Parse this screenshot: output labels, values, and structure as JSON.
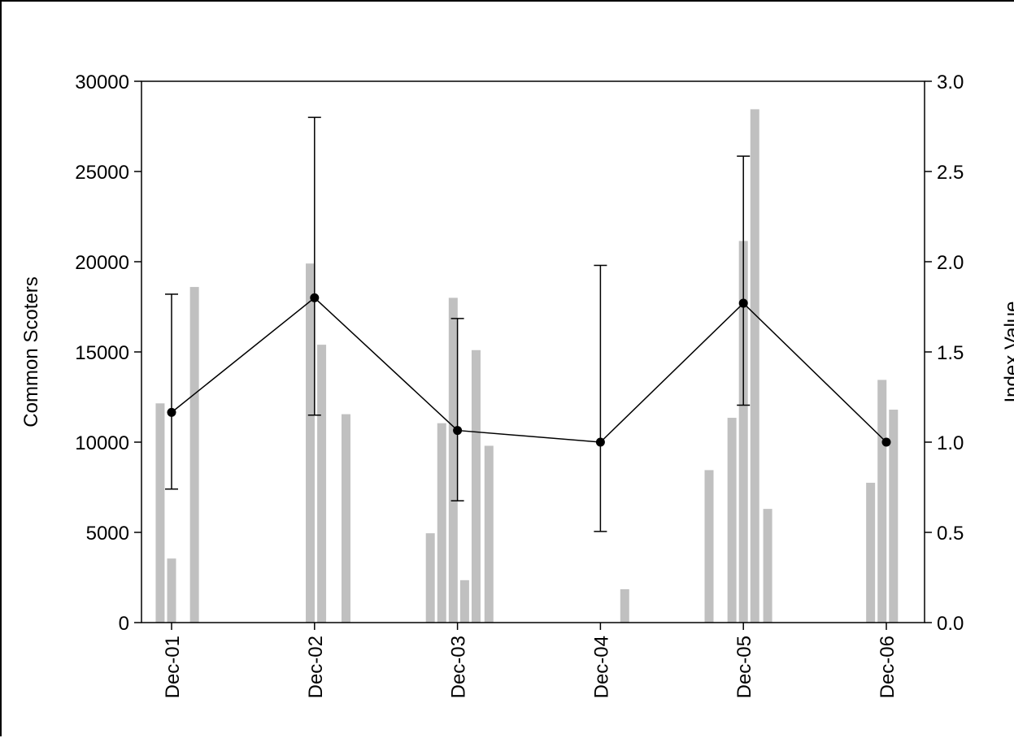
{
  "chart_data": {
    "type": "bar",
    "title": "",
    "x_tick_labels": [
      "Dec-01",
      "Dec-02",
      "Dec-03",
      "Dec-04",
      "Dec-05",
      "Dec-06"
    ],
    "ylabel": "Common Scoters",
    "ylabel_right": "Index Value",
    "ylim": [
      0,
      30000
    ],
    "ylim_right": [
      0,
      3.0
    ],
    "yticks": [
      "0",
      "5000",
      "10000",
      "15000",
      "20000",
      "25000",
      "30000"
    ],
    "yticks_right": [
      "0.0",
      "0.5",
      "1.0",
      "1.5",
      "2.0",
      "2.5",
      "3.0"
    ],
    "grid": false,
    "series": [
      {
        "kind": "bars",
        "axis": "left",
        "color": "#c0c0c0",
        "x": [
          -0.08,
          0.0,
          0.16,
          0.97,
          1.05,
          1.22,
          1.81,
          1.89,
          1.97,
          2.05,
          2.13,
          2.22,
          3.17,
          3.76,
          3.92,
          4.0,
          4.08,
          4.17,
          4.89,
          4.97,
          5.05,
          5.14
        ],
        "values": [
          12150,
          3550,
          18600,
          19900,
          15400,
          11550,
          4950,
          11050,
          18000,
          2350,
          15100,
          9800,
          1850,
          8450,
          11350,
          21150,
          28450,
          6300,
          7750,
          13450,
          11800,
          0
        ]
      },
      {
        "kind": "line",
        "axis": "right",
        "color": "#000000",
        "x": [
          0,
          1,
          2,
          3,
          4,
          5
        ],
        "values": [
          1.165,
          1.8,
          1.065,
          1.0,
          1.77,
          1.0
        ],
        "error_low": [
          0.74,
          1.15,
          0.675,
          0.505,
          1.205,
          1.0
        ],
        "error_high": [
          1.82,
          2.8,
          1.685,
          1.98,
          2.585,
          1.0
        ]
      }
    ]
  }
}
